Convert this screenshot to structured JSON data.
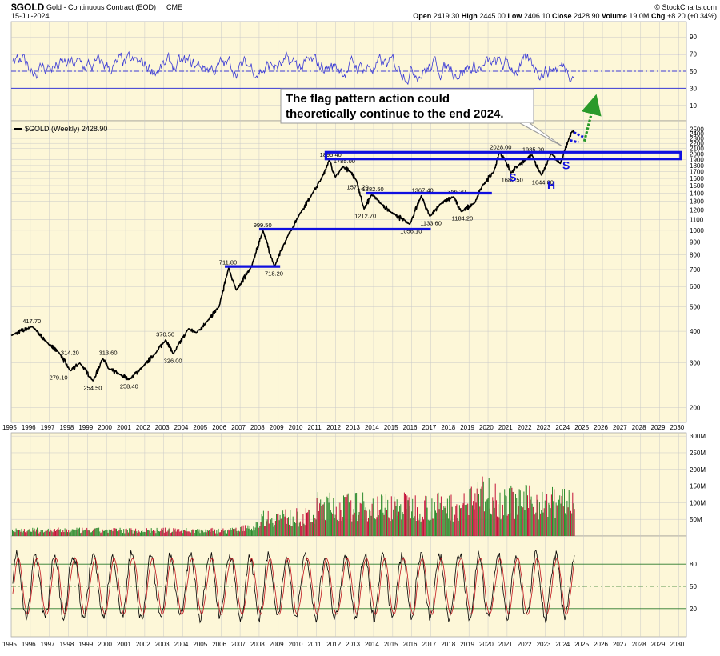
{
  "header": {
    "symbol": "$GOLD",
    "name": "Gold - Continuous Contract (EOD)",
    "exchange": "CME",
    "date": "15-Jul-2024",
    "ohlc_text": "Open 2419.30  High 2445.00  Low 2406.10  Close 2428.90  Volume 19.0M  Chg +8.20 (+0.34%)",
    "open_label": "Open",
    "open": "2419.30",
    "high_label": "High",
    "high": "2445.00",
    "low_label": "Low",
    "low": "2406.10",
    "close_label": "Close",
    "close": "2428.90",
    "volume_label": "Volume",
    "volume": "19.0M",
    "chg_label": "Chg",
    "chg": "+8.20 (+0.34%)",
    "watermark": "© StockCharts.com"
  },
  "colors": {
    "panel_bg": "#fdf7d8",
    "price_line": "#000000",
    "rsi_line": "#3a3ad6",
    "annotation_blue": "#1010e0",
    "annotation_green": "#2a9a2a",
    "volume_up": "#2e8b2e",
    "volume_down": "#c4143a",
    "stoch_line": "#c0141c"
  },
  "chart_data": [
    {
      "type": "line",
      "panel": "rsi",
      "ylim": [
        0,
        100
      ],
      "y_ticks": [
        "90",
        "70",
        "50",
        "30",
        "10"
      ],
      "reference_lines": [
        70,
        50,
        30
      ]
    },
    {
      "type": "line",
      "panel": "price",
      "legend": "$GOLD (Weekly) 2428.90",
      "scale": "log",
      "ylim": [
        200,
        2600
      ],
      "y_ticks": [
        2500,
        2400,
        2300,
        2200,
        2100,
        2000,
        1900,
        1800,
        1700,
        1600,
        1500,
        1400,
        1300,
        1200,
        1100,
        1000,
        900,
        800,
        700,
        600,
        500,
        400,
        300,
        200
      ],
      "x_ticks": [
        "1995",
        "1996",
        "1997",
        "1998",
        "1999",
        "2000",
        "2001",
        "2002",
        "2003",
        "2004",
        "2005",
        "2006",
        "2007",
        "2008",
        "2009",
        "2010",
        "2011",
        "2012",
        "2013",
        "2014",
        "2015",
        "2016",
        "2017",
        "2018",
        "2019",
        "2020",
        "2021",
        "2022",
        "2023",
        "2024",
        "2025",
        "2026",
        "2027",
        "2028",
        "2029",
        "2030"
      ],
      "x": [
        1995.0,
        1996.1,
        1996.9,
        1997.5,
        1998.1,
        1998.6,
        1999.3,
        1999.8,
        2000.1,
        2000.7,
        2001.2,
        2001.9,
        2002.6,
        2003.1,
        2003.5,
        2004.3,
        2004.7,
        2005.3,
        2005.9,
        2006.4,
        2006.8,
        2007.6,
        2008.2,
        2008.8,
        2009.5,
        2010.1,
        2010.8,
        2011.25,
        2011.68,
        2012.0,
        2012.4,
        2012.8,
        2013.1,
        2013.5,
        2013.9,
        2014.4,
        2014.9,
        2015.9,
        2016.5,
        2016.95,
        2017.5,
        2018.2,
        2018.6,
        2019.3,
        2019.7,
        2020.3,
        2020.6,
        2020.9,
        2021.2,
        2021.6,
        2022.0,
        2022.3,
        2022.8,
        2023.3,
        2023.8,
        2024.0,
        2024.2,
        2024.4,
        2024.53
      ],
      "y": [
        385,
        417.7,
        360,
        330,
        279.1,
        300,
        254.5,
        313.6,
        285,
        270,
        258.4,
        290,
        330,
        370.5,
        326,
        410,
        395,
        440,
        500,
        711.8,
        580,
        720,
        999.5,
        718.2,
        950,
        1150,
        1400,
        1590,
        1895,
        1620,
        1785,
        1700,
        1571.2,
        1212.7,
        1382.5,
        1270,
        1180,
        1056.1,
        1367.4,
        1133.6,
        1270,
        1356.2,
        1184.2,
        1280,
        1500,
        1700,
        2028,
        1890,
        1680.5,
        1800,
        1900,
        1985,
        1644.8,
        2000,
        1830,
        2050,
        2250,
        2450,
        2428.9
      ],
      "labels": [
        {
          "text": "417.70",
          "x": 1996.1,
          "y": 417.7
        },
        {
          "text": "314.20",
          "x": 1998.1,
          "y": 314.2
        },
        {
          "text": "279.10",
          "x": 1997.5,
          "y": 279.1
        },
        {
          "text": "313.60",
          "x": 2000.1,
          "y": 313.6
        },
        {
          "text": "254.50",
          "x": 1999.3,
          "y": 254.5
        },
        {
          "text": "258.40",
          "x": 2001.2,
          "y": 258.4
        },
        {
          "text": "370.50",
          "x": 2003.1,
          "y": 370.5
        },
        {
          "text": "326.00",
          "x": 2003.5,
          "y": 326
        },
        {
          "text": "711.80",
          "x": 2006.4,
          "y": 711.8
        },
        {
          "text": "718.20",
          "x": 2008.8,
          "y": 718.2
        },
        {
          "text": "999.50",
          "x": 2008.2,
          "y": 999.5
        },
        {
          "text": "1895.40",
          "x": 2011.68,
          "y": 1895.4
        },
        {
          "text": "1785.00",
          "x": 2012.4,
          "y": 1785
        },
        {
          "text": "1571.20",
          "x": 2013.1,
          "y": 1571.2
        },
        {
          "text": "1382.50",
          "x": 2013.9,
          "y": 1382.5
        },
        {
          "text": "1212.70",
          "x": 2013.5,
          "y": 1212.7
        },
        {
          "text": "1367.40",
          "x": 2016.5,
          "y": 1367.4
        },
        {
          "text": "1056.10",
          "x": 2015.9,
          "y": 1056.1
        },
        {
          "text": "1133.60",
          "x": 2016.95,
          "y": 1133.6
        },
        {
          "text": "1356.20",
          "x": 2018.2,
          "y": 1356.2
        },
        {
          "text": "1184.20",
          "x": 2018.6,
          "y": 1184.2
        },
        {
          "text": "2028.00",
          "x": 2020.6,
          "y": 2028
        },
        {
          "text": "1680.50",
          "x": 2021.2,
          "y": 1680.5
        },
        {
          "text": "1985.00",
          "x": 2022.3,
          "y": 1985
        },
        {
          "text": "1644.80",
          "x": 2022.8,
          "y": 1644.8
        }
      ],
      "annotations": {
        "callout": "The flag pattern action could theoretically continue to the end 2024.",
        "pattern_letters": [
          "S",
          "H",
          "S"
        ]
      }
    },
    {
      "type": "bar",
      "panel": "volume",
      "y_ticks": [
        "300M",
        "250M",
        "200M",
        "150M",
        "100M",
        "50M"
      ],
      "ylim": [
        0,
        310
      ]
    },
    {
      "type": "line",
      "panel": "stochastic",
      "ylim": [
        0,
        100
      ],
      "y_ticks": [
        "80",
        "50",
        "20"
      ],
      "reference_lines": [
        80,
        50,
        20
      ]
    }
  ]
}
